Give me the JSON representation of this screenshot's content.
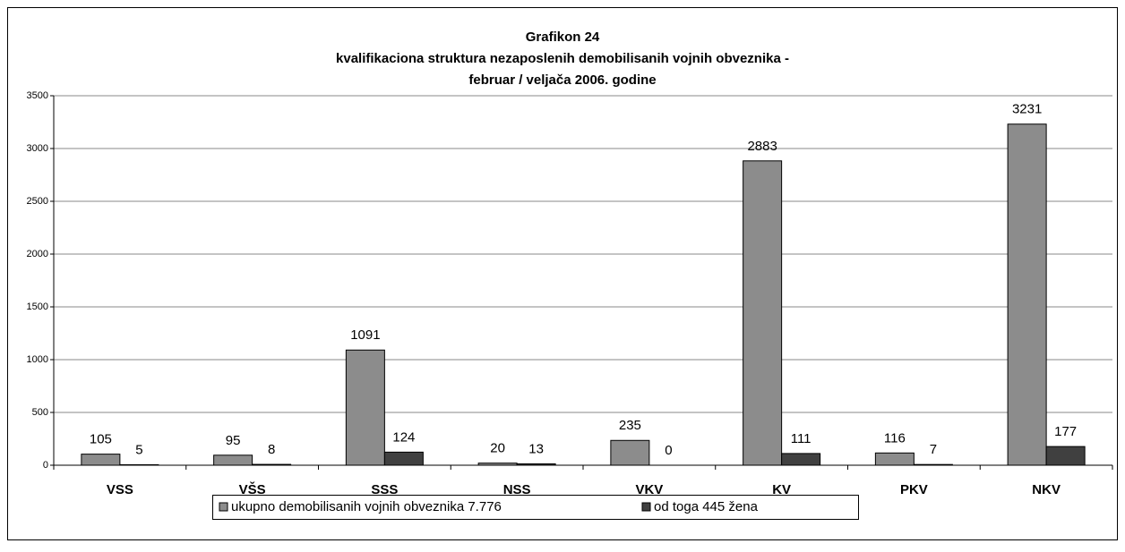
{
  "chart_data": {
    "type": "bar",
    "title": "Grafikon 24",
    "subtitle": [
      "kvalifikaciona struktura nezaposlenih demobilisanih vojnih obveznika -",
      "februar / veljača 2006. godine"
    ],
    "categories": [
      "VSS",
      "VŠS",
      "SSS",
      "NSS",
      "VKV",
      "KV",
      "PKV",
      "NKV"
    ],
    "series": [
      {
        "name": "ukupno demobilisanih vojnih obveznika 7.776",
        "color": "#8c8c8c",
        "values": [
          105,
          95,
          1091,
          20,
          235,
          2883,
          116,
          3231
        ]
      },
      {
        "name": "od toga 445 žena",
        "color": "#404040",
        "values": [
          5,
          8,
          124,
          13,
          0,
          111,
          7,
          177
        ]
      }
    ],
    "ylim": [
      0,
      3500
    ],
    "yticks": [
      0,
      500,
      1000,
      1500,
      2000,
      2500,
      3000,
      3500
    ],
    "grid": true,
    "legend": "bottom"
  }
}
